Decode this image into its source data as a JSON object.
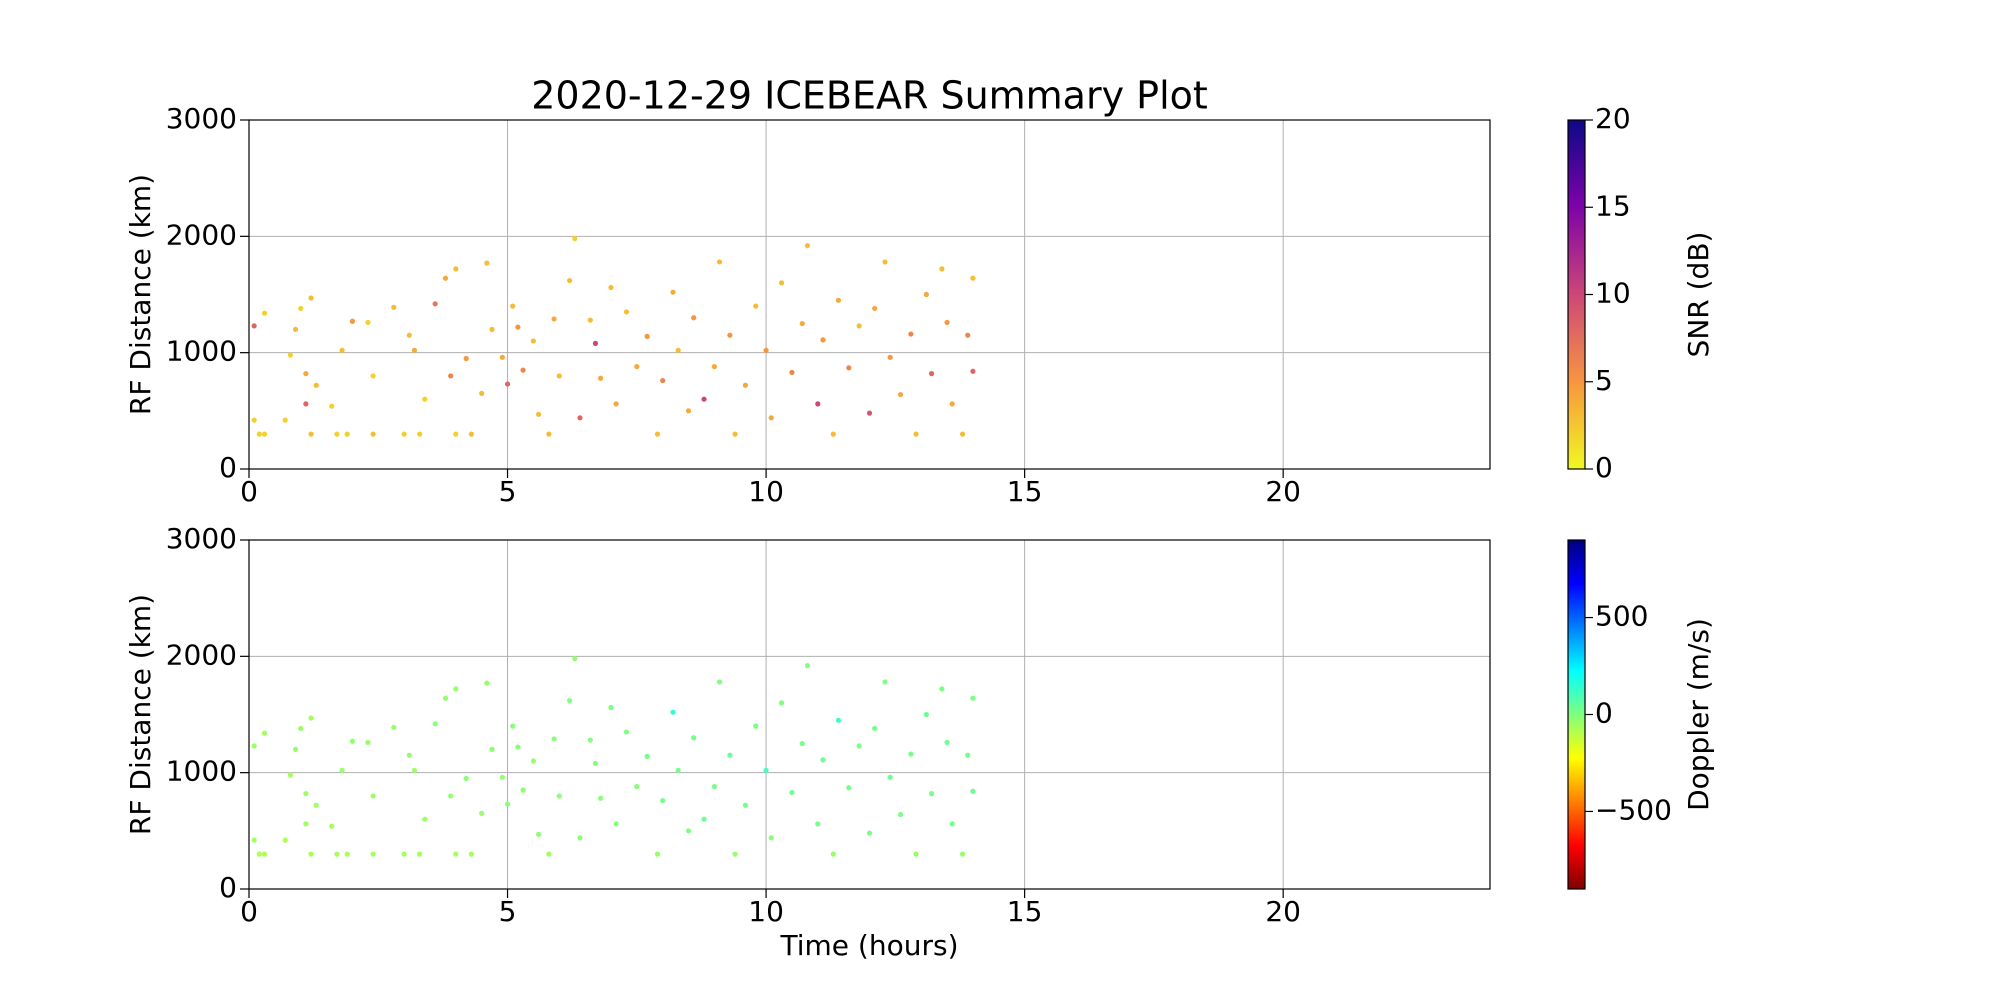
{
  "chart_data": [
    {
      "type": "scatter",
      "title": "2020-12-29 ICEBEAR Summary Plot",
      "ylabel": "RF Distance (km)",
      "xlim": [
        0,
        24
      ],
      "xticks": [
        0,
        5,
        10,
        15,
        20
      ],
      "ylim": [
        0,
        3000
      ],
      "yticks": [
        0,
        1000,
        2000,
        3000
      ],
      "grid": true,
      "x": [
        0.1,
        0.2,
        0.3,
        0.1,
        0.3,
        0.7,
        0.8,
        0.9,
        1.0,
        1.1,
        1.1,
        1.2,
        1.2,
        1.3,
        1.6,
        1.7,
        1.8,
        1.9,
        2.0,
        2.3,
        2.4,
        2.4,
        2.8,
        3.0,
        3.1,
        3.2,
        3.3,
        3.4,
        3.6,
        3.8,
        3.9,
        4.0,
        4.0,
        4.2,
        4.3,
        4.5,
        4.6,
        4.7,
        4.9,
        5.0,
        5.1,
        5.2,
        5.3,
        5.5,
        5.6,
        5.8,
        5.9,
        6.0,
        6.2,
        6.3,
        6.4,
        6.6,
        6.7,
        6.8,
        7.0,
        7.1,
        7.3,
        7.5,
        7.7,
        7.9,
        8.0,
        8.2,
        8.3,
        8.5,
        8.6,
        8.8,
        9.0,
        9.1,
        9.3,
        9.4,
        9.6,
        9.8,
        10.0,
        10.1,
        10.3,
        10.5,
        10.7,
        10.8,
        11.0,
        11.1,
        11.3,
        11.4,
        11.6,
        11.8,
        12.0,
        12.1,
        12.3,
        12.4,
        12.6,
        12.8,
        12.9,
        13.1,
        13.2,
        13.4,
        13.5,
        13.6,
        13.8,
        13.9,
        14.0,
        14.0
      ],
      "values": [
        1230,
        300,
        300,
        420,
        1340,
        420,
        980,
        1200,
        1380,
        820,
        560,
        300,
        1470,
        720,
        540,
        300,
        1020,
        300,
        1270,
        1260,
        300,
        800,
        1390,
        300,
        1150,
        1020,
        300,
        600,
        1420,
        1640,
        800,
        300,
        1720,
        950,
        300,
        650,
        1770,
        1200,
        960,
        730,
        1400,
        1220,
        850,
        1100,
        470,
        300,
        1290,
        800,
        1620,
        1980,
        440,
        1280,
        1080,
        780,
        1560,
        560,
        1350,
        880,
        1140,
        300,
        760,
        1520,
        1020,
        500,
        1300,
        600,
        880,
        1780,
        1150,
        300,
        720,
        1400,
        1020,
        440,
        1600,
        830,
        1250,
        1920,
        560,
        1110,
        300,
        1450,
        870,
        1230,
        480,
        1380,
        1780,
        960,
        640,
        1160,
        300,
        1500,
        820,
        1720,
        1260,
        560,
        300,
        1150,
        840,
        1640
      ],
      "c": [
        8,
        2,
        2,
        2,
        2,
        2,
        2,
        3,
        2,
        4,
        8,
        3,
        3,
        3,
        2,
        2,
        3,
        2,
        5,
        2,
        3,
        2,
        3,
        2,
        3,
        4,
        2,
        2,
        7,
        4,
        6,
        2,
        3,
        5,
        3,
        3,
        3,
        3,
        4,
        8,
        3,
        5,
        6,
        3,
        3,
        3,
        4,
        3,
        3,
        2,
        8,
        3,
        10,
        4,
        3,
        4,
        3,
        4,
        5,
        3,
        6,
        4,
        3,
        4,
        5,
        10,
        4,
        3,
        5,
        3,
        4,
        3,
        5,
        4,
        3,
        6,
        4,
        3,
        10,
        5,
        3,
        4,
        6,
        3,
        9,
        4,
        3,
        5,
        4,
        6,
        3,
        4,
        8,
        3,
        5,
        4,
        3,
        6,
        8,
        3
      ],
      "colormap": "plasma_r",
      "colorbar": {
        "label": "SNR (dB)",
        "lim": [
          0,
          20
        ],
        "ticks": [
          0,
          5,
          10,
          15,
          20
        ]
      }
    },
    {
      "type": "scatter",
      "xlabel": "Time (hours)",
      "ylabel": "RF Distance (km)",
      "xlim": [
        0,
        24
      ],
      "xticks": [
        0,
        5,
        10,
        15,
        20
      ],
      "ylim": [
        0,
        3000
      ],
      "yticks": [
        0,
        1000,
        2000,
        3000
      ],
      "grid": true,
      "x": [
        0.1,
        0.2,
        0.3,
        0.1,
        0.3,
        0.7,
        0.8,
        0.9,
        1.0,
        1.1,
        1.1,
        1.2,
        1.2,
        1.3,
        1.6,
        1.7,
        1.8,
        1.9,
        2.0,
        2.3,
        2.4,
        2.4,
        2.8,
        3.0,
        3.1,
        3.2,
        3.3,
        3.4,
        3.6,
        3.8,
        3.9,
        4.0,
        4.0,
        4.2,
        4.3,
        4.5,
        4.6,
        4.7,
        4.9,
        5.0,
        5.1,
        5.2,
        5.3,
        5.5,
        5.6,
        5.8,
        5.9,
        6.0,
        6.2,
        6.3,
        6.4,
        6.6,
        6.7,
        6.8,
        7.0,
        7.1,
        7.3,
        7.5,
        7.7,
        7.9,
        8.0,
        8.2,
        8.3,
        8.5,
        8.6,
        8.8,
        9.0,
        9.1,
        9.3,
        9.4,
        9.6,
        9.8,
        10.0,
        10.1,
        10.3,
        10.5,
        10.7,
        10.8,
        11.0,
        11.1,
        11.3,
        11.4,
        11.6,
        11.8,
        12.0,
        12.1,
        12.3,
        12.4,
        12.6,
        12.8,
        12.9,
        13.1,
        13.2,
        13.4,
        13.5,
        13.6,
        13.8,
        13.9,
        14.0,
        14.0
      ],
      "values": [
        1230,
        300,
        300,
        420,
        1340,
        420,
        980,
        1200,
        1380,
        820,
        560,
        300,
        1470,
        720,
        540,
        300,
        1020,
        300,
        1270,
        1260,
        300,
        800,
        1390,
        300,
        1150,
        1020,
        300,
        600,
        1420,
        1640,
        800,
        300,
        1720,
        950,
        300,
        650,
        1770,
        1200,
        960,
        730,
        1400,
        1220,
        850,
        1100,
        470,
        300,
        1290,
        800,
        1620,
        1980,
        440,
        1280,
        1080,
        780,
        1560,
        560,
        1350,
        880,
        1140,
        300,
        760,
        1520,
        1020,
        500,
        1300,
        600,
        880,
        1780,
        1150,
        300,
        720,
        1400,
        1020,
        440,
        1600,
        830,
        1250,
        1920,
        560,
        1110,
        300,
        1450,
        870,
        1230,
        480,
        1380,
        1780,
        960,
        640,
        1160,
        300,
        1500,
        820,
        1720,
        1260,
        560,
        300,
        1150,
        840,
        1640
      ],
      "c": [
        -50,
        -80,
        -80,
        -60,
        -60,
        -80,
        -60,
        -40,
        -50,
        -40,
        -50,
        -70,
        -60,
        -50,
        -60,
        -70,
        -40,
        -70,
        -30,
        -40,
        -60,
        -50,
        -40,
        -60,
        -30,
        -50,
        -70,
        -50,
        -20,
        -30,
        -30,
        -60,
        -40,
        -20,
        -60,
        -40,
        -30,
        -20,
        -30,
        -20,
        -20,
        -10,
        -20,
        -30,
        -20,
        -60,
        -10,
        -20,
        -10,
        -30,
        -20,
        0,
        -10,
        -20,
        10,
        -10,
        0,
        -10,
        20,
        -40,
        10,
        150,
        20,
        0,
        20,
        30,
        20,
        0,
        40,
        -40,
        20,
        10,
        100,
        -10,
        10,
        30,
        20,
        0,
        20,
        30,
        -40,
        120,
        20,
        10,
        10,
        20,
        0,
        30,
        10,
        20,
        -40,
        30,
        20,
        10,
        30,
        20,
        -40,
        20,
        30,
        10
      ],
      "colormap": "jet_r",
      "colorbar": {
        "label": "Doppler (m/s)",
        "lim": [
          -900,
          900
        ],
        "ticks": [
          {
            "value": -500,
            "label": "−500"
          },
          0,
          500
        ]
      }
    }
  ]
}
